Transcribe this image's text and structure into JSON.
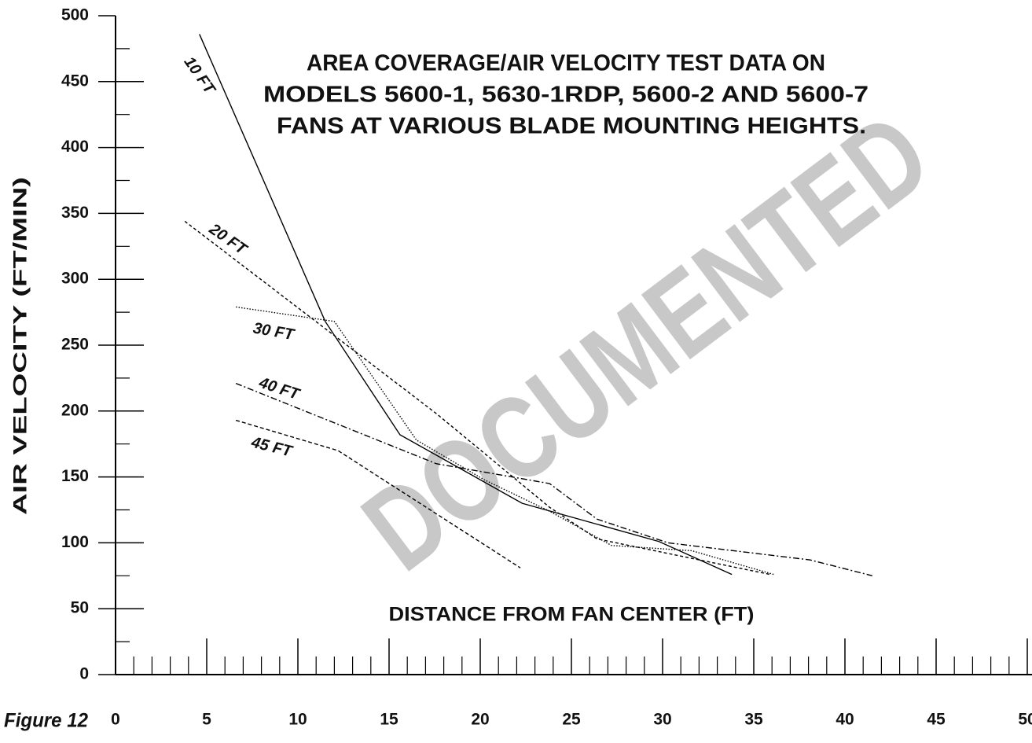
{
  "chart_data": {
    "type": "line",
    "title": [
      "AREA COVERAGE/AIR VELOCITY TEST DATA ON",
      "MODELS 5600-1, 5630-1RDP, 5600-2 AND 5600-7",
      "FANS AT VARIOUS BLADE MOUNTING HEIGHTS."
    ],
    "xlabel": "DISTANCE FROM FAN CENTER (FT)",
    "ylabel": "AIR VELOCITY (FT/MIN)",
    "figure_label": "Figure 12",
    "watermark": "DOCUMENTED",
    "xlim": [
      0,
      50
    ],
    "ylim": [
      0,
      500
    ],
    "xticks": [
      0,
      5,
      10,
      15,
      20,
      25,
      30,
      35,
      40,
      45,
      50
    ],
    "yticks": [
      0,
      50,
      100,
      150,
      200,
      250,
      300,
      350,
      400,
      450,
      500
    ],
    "x_minor_ticks": [
      1,
      2,
      3,
      4,
      6,
      7,
      8,
      9,
      11,
      12,
      13,
      14,
      16,
      17,
      18,
      19,
      21,
      22,
      23,
      24,
      26,
      27,
      28,
      29,
      31,
      32,
      33,
      34,
      36,
      37,
      38,
      39,
      41,
      42,
      43,
      44,
      46,
      47,
      48,
      49
    ],
    "y_minor_ticks": [
      25,
      75,
      125,
      175,
      225,
      275,
      325,
      375,
      425,
      475
    ],
    "series": [
      {
        "name": "10 FT",
        "color": "#000000",
        "dash": "none",
        "x": [
          4.6,
          11.5,
          15.6,
          22.3,
          29.8,
          33.8
        ],
        "values": [
          486,
          268,
          182,
          130,
          101,
          76
        ]
      },
      {
        "name": "20 FT",
        "color": "#000000",
        "dash": "4,3",
        "x": [
          3.8,
          17.6,
          23.8,
          26.4,
          35.9
        ],
        "values": [
          344,
          198,
          127,
          103,
          76
        ]
      },
      {
        "name": "30 FT",
        "color": "#000000",
        "dash": "1.5,2",
        "x": [
          6.6,
          12,
          16.5,
          20.2,
          23.8,
          27.2,
          31.6,
          36.1
        ],
        "values": [
          279,
          268,
          178,
          148,
          124,
          98,
          94,
          76
        ]
      },
      {
        "name": "40 FT",
        "color": "#000000",
        "dash": "8,3,2,3",
        "x": [
          6.6,
          17.6,
          23.8,
          26.4,
          30.3,
          38.1,
          41.5
        ],
        "values": [
          221,
          160,
          145,
          118,
          100,
          87,
          75
        ]
      },
      {
        "name": "45 FT",
        "color": "#000000",
        "dash": "5,3",
        "x": [
          6.6,
          12.2,
          22.2
        ],
        "values": [
          193,
          170,
          81
        ]
      }
    ]
  }
}
